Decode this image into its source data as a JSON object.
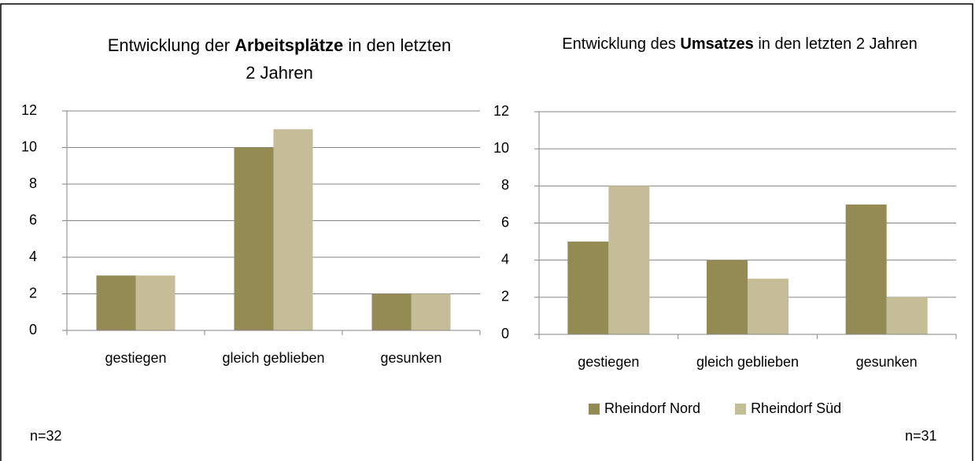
{
  "chart_data": [
    {
      "type": "bar",
      "title": [
        "Entwicklung der ",
        "Arbeitsplätze",
        " in den letzten 2 Jahren"
      ],
      "categories": [
        "gestiegen",
        "gleich geblieben",
        "gesunken"
      ],
      "series": [
        {
          "color": "#948a54",
          "values": [
            3,
            10,
            2
          ]
        },
        {
          "color": "#c4bd97",
          "values": [
            3,
            11,
            2
          ]
        }
      ],
      "ylim": [
        0,
        12
      ],
      "yticks": [
        0,
        2,
        4,
        6,
        8,
        10,
        12
      ],
      "grid": true,
      "note": "n=32"
    },
    {
      "type": "bar",
      "title": [
        "Entwicklung des ",
        "Umsatzes",
        " in den letzten 2 Jahren"
      ],
      "categories": [
        "gestiegen",
        "gleich geblieben",
        "gesunken"
      ],
      "series": [
        {
          "name": "Rheindorf Nord",
          "color": "#948a54",
          "values": [
            5,
            4,
            7
          ]
        },
        {
          "name": "Rheindorf Süd",
          "color": "#c4bd97",
          "values": [
            8,
            3,
            2
          ]
        }
      ],
      "ylim": [
        0,
        12
      ],
      "yticks": [
        0,
        2,
        4,
        6,
        8,
        10,
        12
      ],
      "grid": true,
      "legend": "bottom",
      "note": "n=31"
    }
  ]
}
